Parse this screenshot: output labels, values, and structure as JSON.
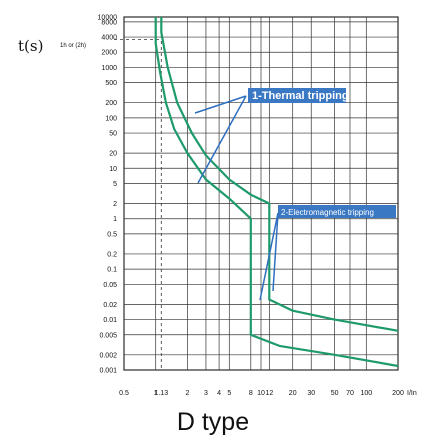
{
  "chart_data": {
    "type": "line",
    "ylabel": "t(s)",
    "ylabel_note": "1h or (2h)",
    "xlabel_unit": "I/In",
    "caption": "D type",
    "y_scale": "log",
    "x_scale": "log",
    "y_ticks": [
      "10000",
      "8000",
      "4000",
      "2000",
      "1000",
      "500",
      "200",
      "100",
      "50",
      "20",
      "10",
      "5",
      "2",
      "1",
      "0.5",
      "0.2",
      "0.1",
      "0.05",
      "0.02",
      "0.01",
      "0.005",
      "0.002",
      "0.001"
    ],
    "x_ticks": [
      "0.5",
      "1",
      "1.13",
      "2",
      "3",
      "4",
      "5",
      "8",
      "10",
      "12",
      "20",
      "30",
      "50",
      "70",
      "100",
      "200"
    ],
    "ylim": [
      0.001,
      10000
    ],
    "xlim": [
      0.5,
      200
    ],
    "grid": true,
    "series": [
      {
        "name": "curve-lower",
        "color": "#1e9a6b",
        "points": [
          [
            1.0,
            10000
          ],
          [
            1.0,
            3000
          ],
          [
            1.1,
            800
          ],
          [
            1.25,
            200
          ],
          [
            1.5,
            60
          ],
          [
            2,
            20
          ],
          [
            3,
            6
          ],
          [
            5,
            2.5
          ],
          [
            8,
            1.0
          ],
          [
            8,
            0.005
          ],
          [
            15,
            0.003
          ],
          [
            50,
            0.002
          ],
          [
            200,
            0.0012
          ]
        ]
      },
      {
        "name": "curve-upper",
        "color": "#1e9a6b",
        "points": [
          [
            1.13,
            10000
          ],
          [
            1.13,
            5000
          ],
          [
            1.3,
            1000
          ],
          [
            1.6,
            200
          ],
          [
            2.2,
            50
          ],
          [
            3,
            18
          ],
          [
            5,
            6
          ],
          [
            8,
            3
          ],
          [
            12,
            2
          ],
          [
            12,
            0.025
          ],
          [
            20,
            0.015
          ],
          [
            50,
            0.01
          ],
          [
            200,
            0.006
          ]
        ]
      }
    ],
    "annotations": [
      {
        "text": "1-Thermal tripping"
      },
      {
        "text": "2-Electromagnetic tripping"
      }
    ]
  }
}
